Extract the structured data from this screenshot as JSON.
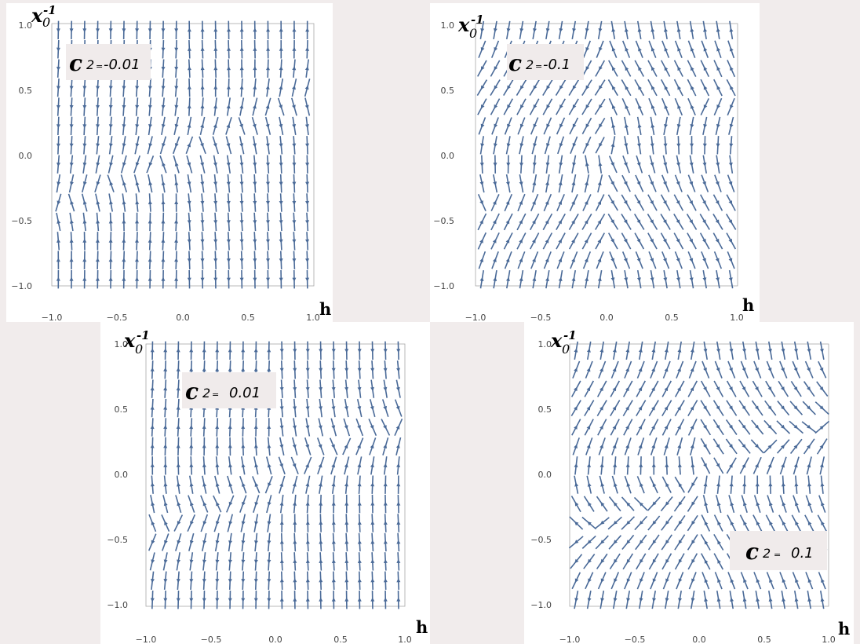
{
  "colors": {
    "stream": "#4a6a98",
    "background": "#f1ecec",
    "panel": "#ffffff",
    "annotation_box": "#f0ebeb"
  },
  "x_ticks": [
    "−1.0",
    "−0.5",
    "0.0",
    "0.5",
    "1.0"
  ],
  "y_ticks": [
    "−1.0",
    "−0.5",
    "0.0",
    "0.5",
    "1.0"
  ],
  "chart_data": [
    {
      "type": "streamplot",
      "xlabel": "h",
      "ylabel": "x",
      "ylabel_sub": "0",
      "ylabel_sup": "-1",
      "xlim": [
        -1,
        1
      ],
      "ylim": [
        -1,
        1
      ],
      "grid": false,
      "annotation": {
        "symbol": "c",
        "sub": "2",
        "eq": "=",
        "value": "-0.01"
      },
      "annotation_position": "top-left",
      "parameter_c2": -0.01
    },
    {
      "type": "streamplot",
      "xlabel": "h",
      "ylabel": "x",
      "ylabel_sub": "0",
      "ylabel_sup": "-1",
      "xlim": [
        -1,
        1
      ],
      "ylim": [
        -1,
        1
      ],
      "grid": false,
      "annotation": {
        "symbol": "c",
        "sub": "2",
        "eq": "=",
        "value": "-0.1"
      },
      "annotation_position": "top-left",
      "parameter_c2": -0.1
    },
    {
      "type": "streamplot",
      "xlabel": "h",
      "ylabel": "x",
      "ylabel_sub": "0",
      "ylabel_sup": "-1",
      "xlim": [
        -1,
        1
      ],
      "ylim": [
        -1,
        1
      ],
      "grid": false,
      "annotation": {
        "symbol": "c",
        "sub": "2",
        "eq": "=",
        "value": "0.01"
      },
      "annotation_position": "top-left",
      "parameter_c2": 0.01
    },
    {
      "type": "streamplot",
      "xlabel": "h",
      "ylabel": "x",
      "ylabel_sub": "0",
      "ylabel_sup": "-1",
      "xlim": [
        -1,
        1
      ],
      "ylim": [
        -1,
        1
      ],
      "grid": false,
      "annotation": {
        "symbol": "c",
        "sub": "2",
        "eq": "=",
        "value": "0.1"
      },
      "annotation_position": "bottom-right",
      "parameter_c2": 0.1
    }
  ]
}
